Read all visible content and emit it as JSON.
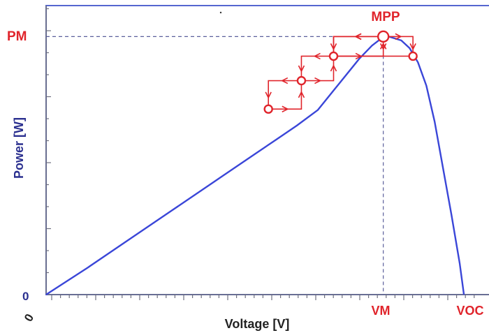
{
  "chart_data": {
    "type": "line",
    "title": "",
    "xlabel": "Voltage [V]",
    "ylabel": "Power [W]",
    "x_origin_label": "0",
    "y_origin_label": "0",
    "annotations": {
      "mpp_label": "MPP",
      "pm_label": "PM",
      "vm_label": "VM",
      "voc_label": "VOC"
    },
    "xlim": [
      0,
      1.06
    ],
    "ylim": [
      0,
      1.12
    ],
    "series": [
      {
        "x": [
          0,
          0.1,
          0.2,
          0.3,
          0.4,
          0.5,
          0.55,
          0.6,
          0.65,
          0.7,
          0.75,
          0.78,
          0.8,
          0.82,
          0.85,
          0.87,
          0.89,
          0.91,
          0.93,
          0.95,
          0.97,
          0.99,
          1.0
        ],
        "y": [
          0,
          0.105,
          0.215,
          0.325,
          0.435,
          0.545,
          0.6,
          0.655,
          0.715,
          0.815,
          0.915,
          0.965,
          0.99,
          1.0,
          0.985,
          0.955,
          0.9,
          0.81,
          0.67,
          0.49,
          0.31,
          0.12,
          0.0
        ]
      }
    ],
    "tracking_points": [
      {
        "x": 0.532,
        "y": 0.719
      },
      {
        "x": 0.611,
        "y": 0.829
      },
      {
        "x": 0.688,
        "y": 0.924
      },
      {
        "x": 0.807,
        "y": 1.0
      },
      {
        "x": 0.878,
        "y": 0.924
      }
    ],
    "reference_lines": {
      "pm": 1.0,
      "vm": 0.807,
      "voc": 1.0
    },
    "colors": {
      "curve": "#3a46d8",
      "frame": "#5566d0",
      "annotation": "#e0242b",
      "axis_text": "#2a2f8f",
      "dashed": "#5a5f9a"
    }
  }
}
